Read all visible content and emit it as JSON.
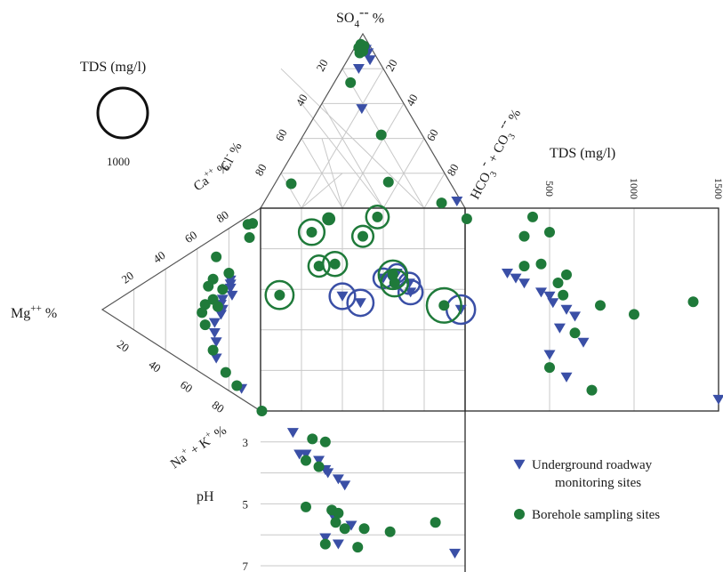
{
  "chart_data": {
    "type": "scatter",
    "diagram": "Durov diagram",
    "labels": {
      "so4": "SO4-- %",
      "cl": "Cl- %",
      "hco3": "HCO3- + CO3-- %",
      "ca": "Ca++ %",
      "mg": "Mg++ %",
      "nak": "Na+ + K+ %",
      "tds": "TDS (mg/l)",
      "ph": "pH",
      "tds_legend_title": "TDS (mg/l)",
      "tds_legend_value": "1000"
    },
    "anion_ticks": {
      "cl": [
        "80",
        "60",
        "40",
        "20"
      ],
      "hco3": [
        "80",
        "60",
        "40",
        "20"
      ]
    },
    "cation_ticks": {
      "ca": [
        "80",
        "60",
        "40",
        "20"
      ],
      "nak": [
        "20",
        "40",
        "60",
        "80"
      ]
    },
    "tds_ticks": [
      "500",
      "1000",
      "1500"
    ],
    "tds_range": [
      0,
      1500
    ],
    "ph_ticks": [
      "3",
      "5",
      "7"
    ],
    "ph_range": [
      2,
      7
    ],
    "series": [
      {
        "name": "Underground roadway monitoring sites",
        "marker": "triangle-down",
        "color": "#3a4fa6",
        "anion_triangle": [
          {
            "so4": 91,
            "cl": 3,
            "hco3": 6
          },
          {
            "so4": 90,
            "cl": 4,
            "hco3": 6
          },
          {
            "so4": 89,
            "cl": 3,
            "hco3": 8
          },
          {
            "so4": 85,
            "cl": 4,
            "hco3": 11
          },
          {
            "so4": 80,
            "cl": 12,
            "hco3": 8
          },
          {
            "so4": 57,
            "cl": 22,
            "hco3": 21
          },
          {
            "so4": 4,
            "cl": 2,
            "hco3": 94
          }
        ],
        "cation_triangle": [
          {
            "ca": 55,
            "nak": 26,
            "mg": 19
          },
          {
            "ca": 53,
            "nak": 28,
            "mg": 19
          },
          {
            "ca": 51,
            "nak": 30,
            "mg": 19
          },
          {
            "ca": 48,
            "nak": 34,
            "mg": 18
          },
          {
            "ca": 43,
            "nak": 33,
            "mg": 24
          },
          {
            "ca": 40,
            "nak": 35,
            "mg": 25
          },
          {
            "ca": 38,
            "nak": 38,
            "mg": 24
          },
          {
            "ca": 35,
            "nak": 40,
            "mg": 25
          },
          {
            "ca": 29,
            "nak": 42,
            "mg": 29
          },
          {
            "ca": 24,
            "nak": 47,
            "mg": 29
          },
          {
            "ca": 20,
            "nak": 52,
            "mg": 28
          },
          {
            "ca": 12,
            "nak": 60,
            "mg": 28
          },
          {
            "ca": 5,
            "nak": 83,
            "mg": 12
          }
        ],
        "tds_ph": [
          {
            "tds": 250,
            "ph": 2.7
          },
          {
            "tds": 300,
            "ph": 3.4
          },
          {
            "tds": 350,
            "ph": 3.4
          },
          {
            "tds": 450,
            "ph": 3.6
          },
          {
            "tds": 500,
            "ph": 3.9
          },
          {
            "tds": 520,
            "ph": 4.0
          },
          {
            "tds": 600,
            "ph": 4.2
          },
          {
            "tds": 650,
            "ph": 4.4
          },
          {
            "tds": 560,
            "ph": 5.4
          },
          {
            "tds": 700,
            "ph": 5.7
          },
          {
            "tds": 500,
            "ph": 6.1
          },
          {
            "tds": 600,
            "ph": 6.3
          },
          {
            "tds": 1500,
            "ph": 6.6
          }
        ]
      },
      {
        "name": "Borehole sampling sites",
        "marker": "circle",
        "color": "#1f7a3a",
        "anion_triangle": [
          {
            "so4": 94,
            "cl": 4,
            "hco3": 2
          },
          {
            "so4": 93,
            "cl": 3,
            "hco3": 4
          },
          {
            "so4": 92,
            "cl": 6,
            "hco3": 2
          },
          {
            "so4": 90,
            "cl": 5,
            "hco3": 5
          },
          {
            "so4": 89,
            "cl": 7,
            "hco3": 4
          },
          {
            "so4": 72,
            "cl": 20,
            "hco3": 8
          },
          {
            "so4": 42,
            "cl": 20,
            "hco3": 38
          },
          {
            "so4": 15,
            "cl": 30,
            "hco3": 55
          },
          {
            "so4": 14,
            "cl": 78,
            "hco3": 8
          },
          {
            "so4": 3,
            "cl": 10,
            "hco3": 87
          }
        ],
        "cation_triangle": [
          {
            "ca": 90,
            "nak": 5,
            "mg": 5
          },
          {
            "ca": 88,
            "nak": 4,
            "mg": 8
          },
          {
            "ca": 82,
            "nak": 11,
            "mg": 7
          },
          {
            "ca": 62,
            "nak": 10,
            "mg": 28
          },
          {
            "ca": 58,
            "nak": 22,
            "mg": 20
          },
          {
            "ca": 50,
            "nak": 20,
            "mg": 30
          },
          {
            "ca": 48,
            "nak": 28,
            "mg": 24
          },
          {
            "ca": 45,
            "nak": 22,
            "mg": 33
          },
          {
            "ca": 40,
            "nak": 30,
            "mg": 30
          },
          {
            "ca": 38,
            "nak": 35,
            "mg": 27
          },
          {
            "ca": 35,
            "nak": 30,
            "mg": 35
          },
          {
            "ca": 30,
            "nak": 33,
            "mg": 37
          },
          {
            "ca": 25,
            "nak": 40,
            "mg": 35
          },
          {
            "ca": 15,
            "nak": 55,
            "mg": 30
          },
          {
            "ca": 8,
            "nak": 70,
            "mg": 22
          },
          {
            "ca": 5,
            "nak": 80,
            "mg": 15
          }
        ],
        "tds_ph": [
          {
            "tds": 10,
            "ph": 2.0
          },
          {
            "tds": 400,
            "ph": 2.9
          },
          {
            "tds": 500,
            "ph": 3.0
          },
          {
            "tds": 350,
            "ph": 3.6
          },
          {
            "tds": 450,
            "ph": 3.8
          },
          {
            "tds": 350,
            "ph": 5.1
          },
          {
            "tds": 550,
            "ph": 5.2
          },
          {
            "tds": 600,
            "ph": 5.3
          },
          {
            "tds": 580,
            "ph": 5.6
          },
          {
            "tds": 800,
            "ph": 5.8
          },
          {
            "tds": 1350,
            "ph": 5.6
          },
          {
            "tds": 1000,
            "ph": 5.9
          },
          {
            "tds": 650,
            "ph": 5.8
          },
          {
            "tds": 500,
            "ph": 6.3
          },
          {
            "tds": 750,
            "ph": 6.4
          }
        ]
      }
    ],
    "legend": {
      "placement": "bottom-right",
      "items": [
        {
          "label": "Underground roadway monitoring sites",
          "marker": "triangle-down",
          "color": "#3a4fa6"
        },
        {
          "label": "Borehole sampling sites",
          "marker": "circle",
          "color": "#1f7a3a"
        }
      ]
    }
  }
}
